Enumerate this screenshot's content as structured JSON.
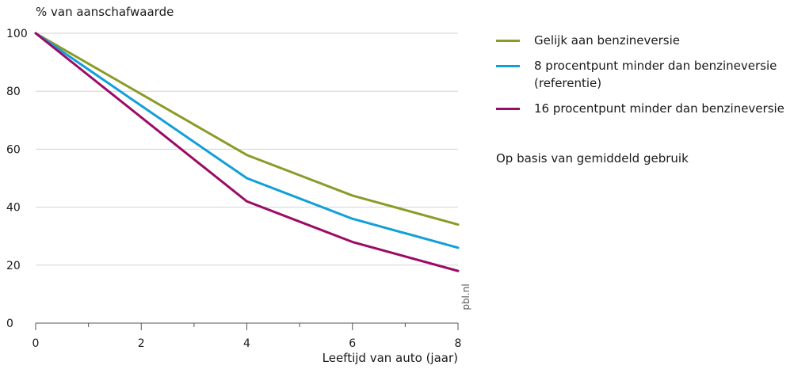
{
  "chart_data": {
    "type": "line",
    "ylabel": "% van aanschafwaarde",
    "xlabel": "Leeftijd van auto (jaar)",
    "x": [
      0,
      4,
      6,
      8
    ],
    "xlim": [
      0,
      8
    ],
    "ylim": [
      0,
      100
    ],
    "xticks": [
      0,
      2,
      4,
      6,
      8
    ],
    "yticks": [
      0,
      20,
      40,
      60,
      80,
      100
    ],
    "grid": "horizontal",
    "legend_position": "right",
    "series": [
      {
        "name": "Gelijk aan benzineversie",
        "color": "#8c9a28",
        "values": [
          100,
          58,
          44,
          34
        ]
      },
      {
        "name": "8 procentpunt minder dan benzineversie (referentie)",
        "color": "#129fd9",
        "values": [
          100,
          50,
          36,
          26
        ]
      },
      {
        "name": "16 procentpunt minder dan benzineversie",
        "color": "#9b0b66",
        "values": [
          100,
          42,
          28,
          18
        ]
      }
    ],
    "note": "Op basis van gemiddeld gebruik",
    "source": "pbl.nl"
  }
}
